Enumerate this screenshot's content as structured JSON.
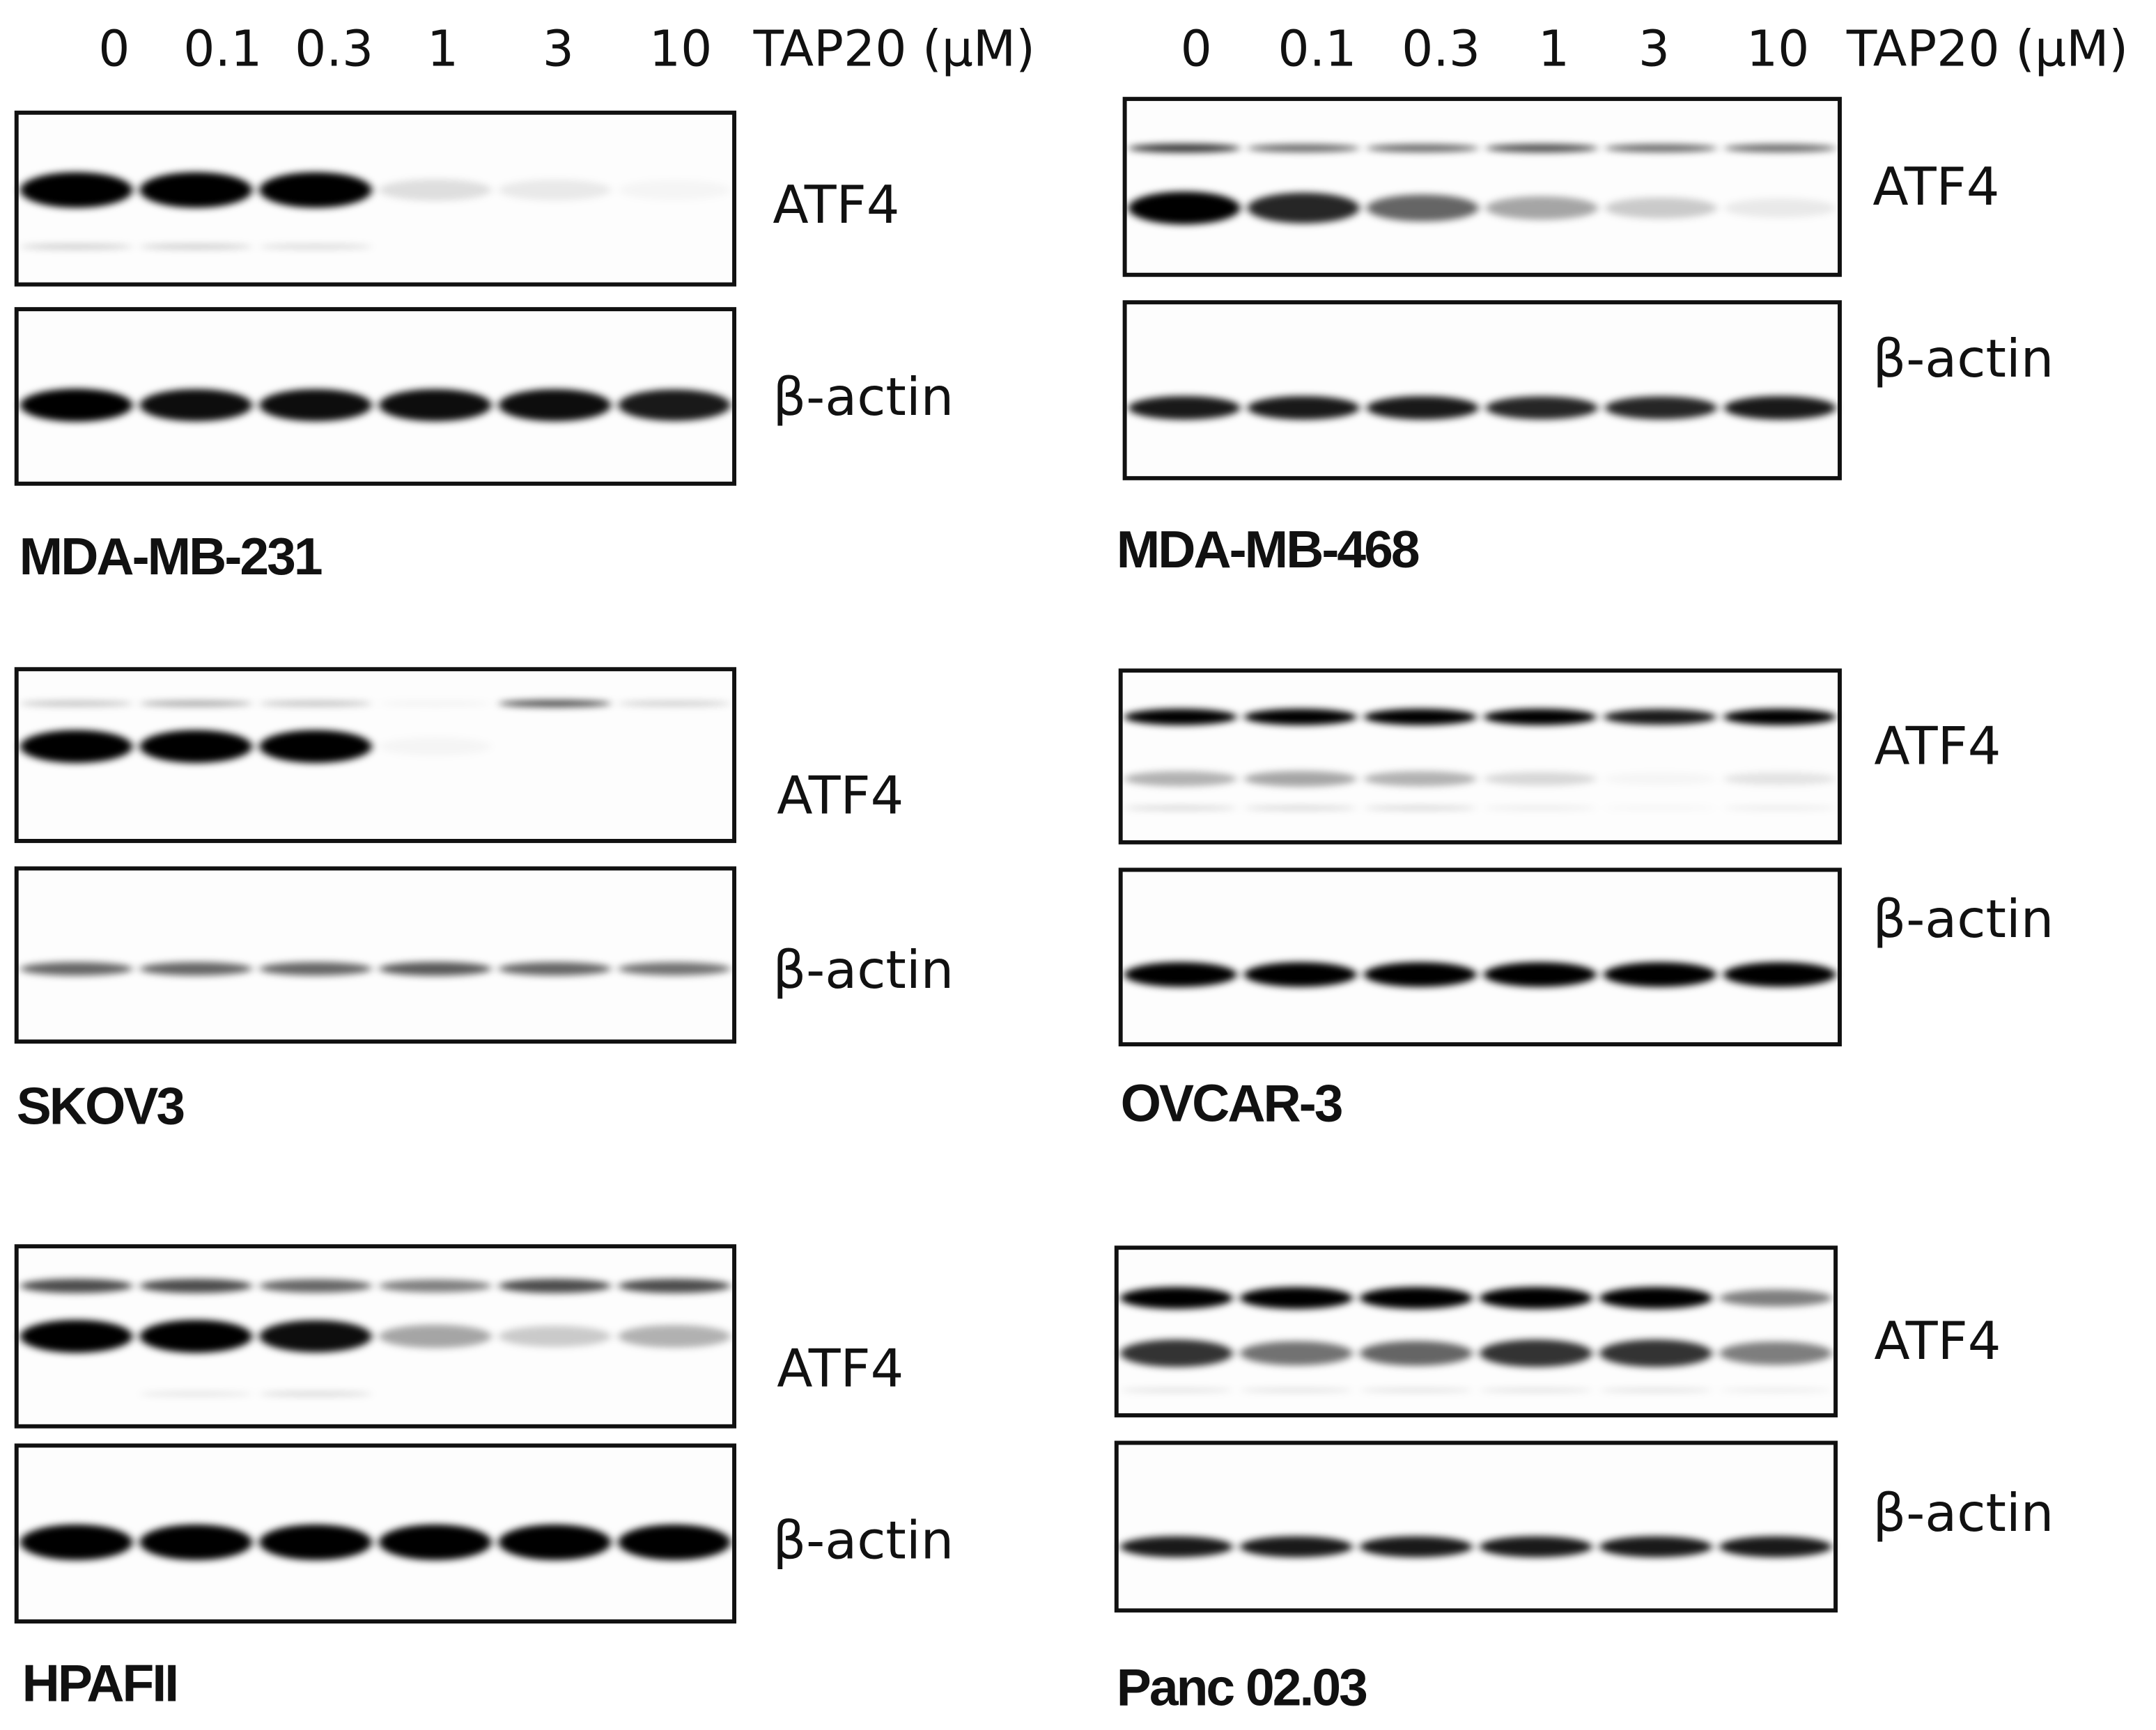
{
  "left_header": {
    "lanes": [
      "0",
      "0.1",
      "0.3",
      "1",
      "3",
      "10"
    ],
    "unit": "TAP20 (μM)"
  },
  "right_header": {
    "lanes": [
      "0",
      "0.1",
      "0.3",
      "1",
      "3",
      "10"
    ],
    "unit": "TAP20 (μM)"
  },
  "panels": [
    {
      "cell_line": "MDA-MB-231",
      "atf4_label": "ATF4",
      "actin_label": "β-actin"
    },
    {
      "cell_line": "SKOV3",
      "atf4_label": "ATF4",
      "actin_label": "β-actin"
    },
    {
      "cell_line": "HPAFII",
      "atf4_label": "ATF4",
      "actin_label": "β-actin"
    },
    {
      "cell_line": "MDA-MB-468",
      "atf4_label": "ATF4",
      "actin_label": "β-actin"
    },
    {
      "cell_line": "OVCAR-3",
      "atf4_label": "ATF4",
      "actin_label": "β-actin"
    },
    {
      "cell_line": "Panc 02.03",
      "atf4_label": "ATF4",
      "actin_label": "β-actin"
    }
  ]
}
